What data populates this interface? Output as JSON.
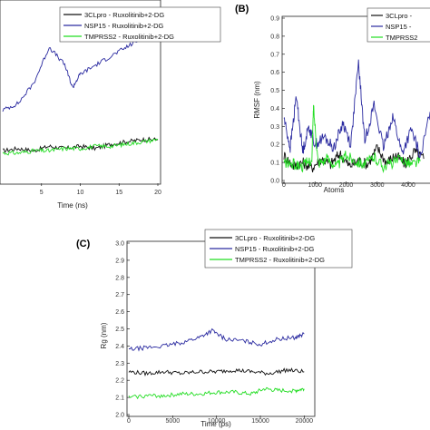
{
  "chart_data": [
    {
      "panel": "",
      "type": "line",
      "xlabel": "Time (ns)",
      "ylabel": "",
      "xlim": [
        0,
        20
      ],
      "ylim": [
        0.0,
        0.8
      ],
      "x_ticks": [
        "5",
        "10",
        "15",
        "20"
      ],
      "legend": {
        "placement": "top-right",
        "entries": [
          "3CLpro - Ruxolitinib+2-DG",
          "NSP15 - Ruxolitinib+2-DG",
          "TMPRSS2  - Ruxolitinib+2-DG"
        ]
      },
      "series": [
        {
          "name": "3CLpro - Ruxolitinib+2-DG",
          "color": "#111111",
          "x": [
            0,
            2,
            4,
            6,
            8,
            10,
            12,
            14,
            16,
            18,
            20
          ],
          "values": [
            0.14,
            0.15,
            0.14,
            0.16,
            0.15,
            0.16,
            0.15,
            0.17,
            0.18,
            0.19,
            0.19
          ]
        },
        {
          "name": "NSP15 - Ruxolitinib+2-DG",
          "color": "#2a2aa0",
          "x": [
            0,
            2,
            4,
            6,
            8,
            9,
            10,
            12,
            14,
            16,
            18,
            20
          ],
          "values": [
            0.32,
            0.35,
            0.44,
            0.6,
            0.52,
            0.42,
            0.48,
            0.52,
            0.56,
            0.6,
            0.64,
            0.68
          ]
        },
        {
          "name": "TMPRSS2  - Ruxolitinib+2-DG",
          "color": "#22dd22",
          "x": [
            0,
            2,
            4,
            6,
            8,
            10,
            12,
            14,
            16,
            18,
            20
          ],
          "values": [
            0.13,
            0.13,
            0.14,
            0.14,
            0.15,
            0.15,
            0.16,
            0.16,
            0.17,
            0.18,
            0.19
          ]
        }
      ]
    },
    {
      "panel": "(B)",
      "type": "line",
      "xlabel": "Atoms",
      "ylabel": "RMSF (nm)",
      "xlim": [
        0,
        4700
      ],
      "ylim": [
        0.0,
        0.9
      ],
      "x_ticks": [
        "0",
        "1000",
        "2000",
        "3000",
        "4000"
      ],
      "y_ticks": [
        "0.0",
        "0.1",
        "0.2",
        "0.3",
        "0.4",
        "0.5",
        "0.6",
        "0.7",
        "0.8",
        "0.9"
      ],
      "legend": {
        "placement": "top-right",
        "entries": [
          "3CLpro -",
          "NSP15 -",
          "TMPRSS2"
        ]
      },
      "series": [
        {
          "name": "3CLpro -",
          "color": "#111111",
          "x": [
            0,
            300,
            600,
            900,
            1200,
            1500,
            1800,
            2100,
            2400,
            2700,
            3000,
            3300,
            3600,
            3900,
            4200,
            4500
          ],
          "values": [
            0.14,
            0.08,
            0.1,
            0.07,
            0.12,
            0.09,
            0.15,
            0.08,
            0.11,
            0.09,
            0.18,
            0.1,
            0.14,
            0.09,
            0.16,
            0.12
          ]
        },
        {
          "name": "NSP15 -",
          "color": "#2a2aa0",
          "x": [
            0,
            200,
            400,
            600,
            800,
            1000,
            1300,
            1600,
            1900,
            2150,
            2400,
            2600,
            2900,
            3200,
            3500,
            3800,
            4100,
            4400,
            4700
          ],
          "values": [
            0.35,
            0.18,
            0.47,
            0.16,
            0.3,
            0.2,
            0.24,
            0.18,
            0.32,
            0.2,
            0.65,
            0.22,
            0.42,
            0.18,
            0.36,
            0.15,
            0.28,
            0.13,
            0.38
          ]
        },
        {
          "name": "TMPRSS2",
          "color": "#22dd22",
          "x": [
            0,
            300,
            600,
            900,
            950,
            1100,
            1400,
            1700,
            2000,
            2300,
            2600,
            2900,
            3200,
            3500,
            3800,
            4100,
            4400
          ],
          "values": [
            0.1,
            0.09,
            0.08,
            0.12,
            0.41,
            0.1,
            0.12,
            0.08,
            0.14,
            0.11,
            0.09,
            0.13,
            0.08,
            0.1,
            0.12,
            0.09,
            0.11
          ]
        }
      ]
    },
    {
      "panel": "(C)",
      "type": "line",
      "xlabel": "Time (ps)",
      "ylabel": "Rg (nm)",
      "xlim": [
        0,
        21000
      ],
      "ylim": [
        2.0,
        3.0
      ],
      "x_ticks": [
        "0",
        "5000",
        "10000",
        "15000",
        "20000"
      ],
      "y_ticks": [
        "2.0",
        "2.1",
        "2.2",
        "2.3",
        "2.4",
        "2.5",
        "2.6",
        "2.7",
        "2.8",
        "2.9",
        "3.0"
      ],
      "legend": {
        "placement": "top-right",
        "entries": [
          "3CLpro - Ruxolitinib+2-DG",
          "NSP15 - Ruxolitinib+2-DG",
          "TMPRSS2  - Ruxolitinib+2-DG"
        ]
      },
      "series": [
        {
          "name": "3CLpro - Ruxolitinib+2-DG",
          "color": "#111111",
          "x": [
            0,
            2000,
            4000,
            6000,
            8000,
            10000,
            12000,
            14000,
            16000,
            18000,
            20000
          ],
          "values": [
            2.25,
            2.24,
            2.25,
            2.24,
            2.25,
            2.25,
            2.26,
            2.25,
            2.24,
            2.26,
            2.25
          ]
        },
        {
          "name": "NSP15 - Ruxolitinib+2-DG",
          "color": "#2a2aa0",
          "x": [
            0,
            2000,
            4000,
            6000,
            8000,
            9500,
            11000,
            13000,
            15000,
            17000,
            19000,
            20000
          ],
          "values": [
            2.38,
            2.39,
            2.4,
            2.42,
            2.45,
            2.49,
            2.44,
            2.43,
            2.41,
            2.44,
            2.45,
            2.47
          ]
        },
        {
          "name": "TMPRSS2  - Ruxolitinib+2-DG",
          "color": "#22dd22",
          "x": [
            0,
            2000,
            4000,
            6000,
            8000,
            10000,
            12000,
            14000,
            15500,
            17000,
            19000,
            20000
          ],
          "values": [
            2.1,
            2.11,
            2.11,
            2.12,
            2.12,
            2.13,
            2.13,
            2.12,
            2.15,
            2.14,
            2.14,
            2.15
          ]
        }
      ]
    }
  ]
}
